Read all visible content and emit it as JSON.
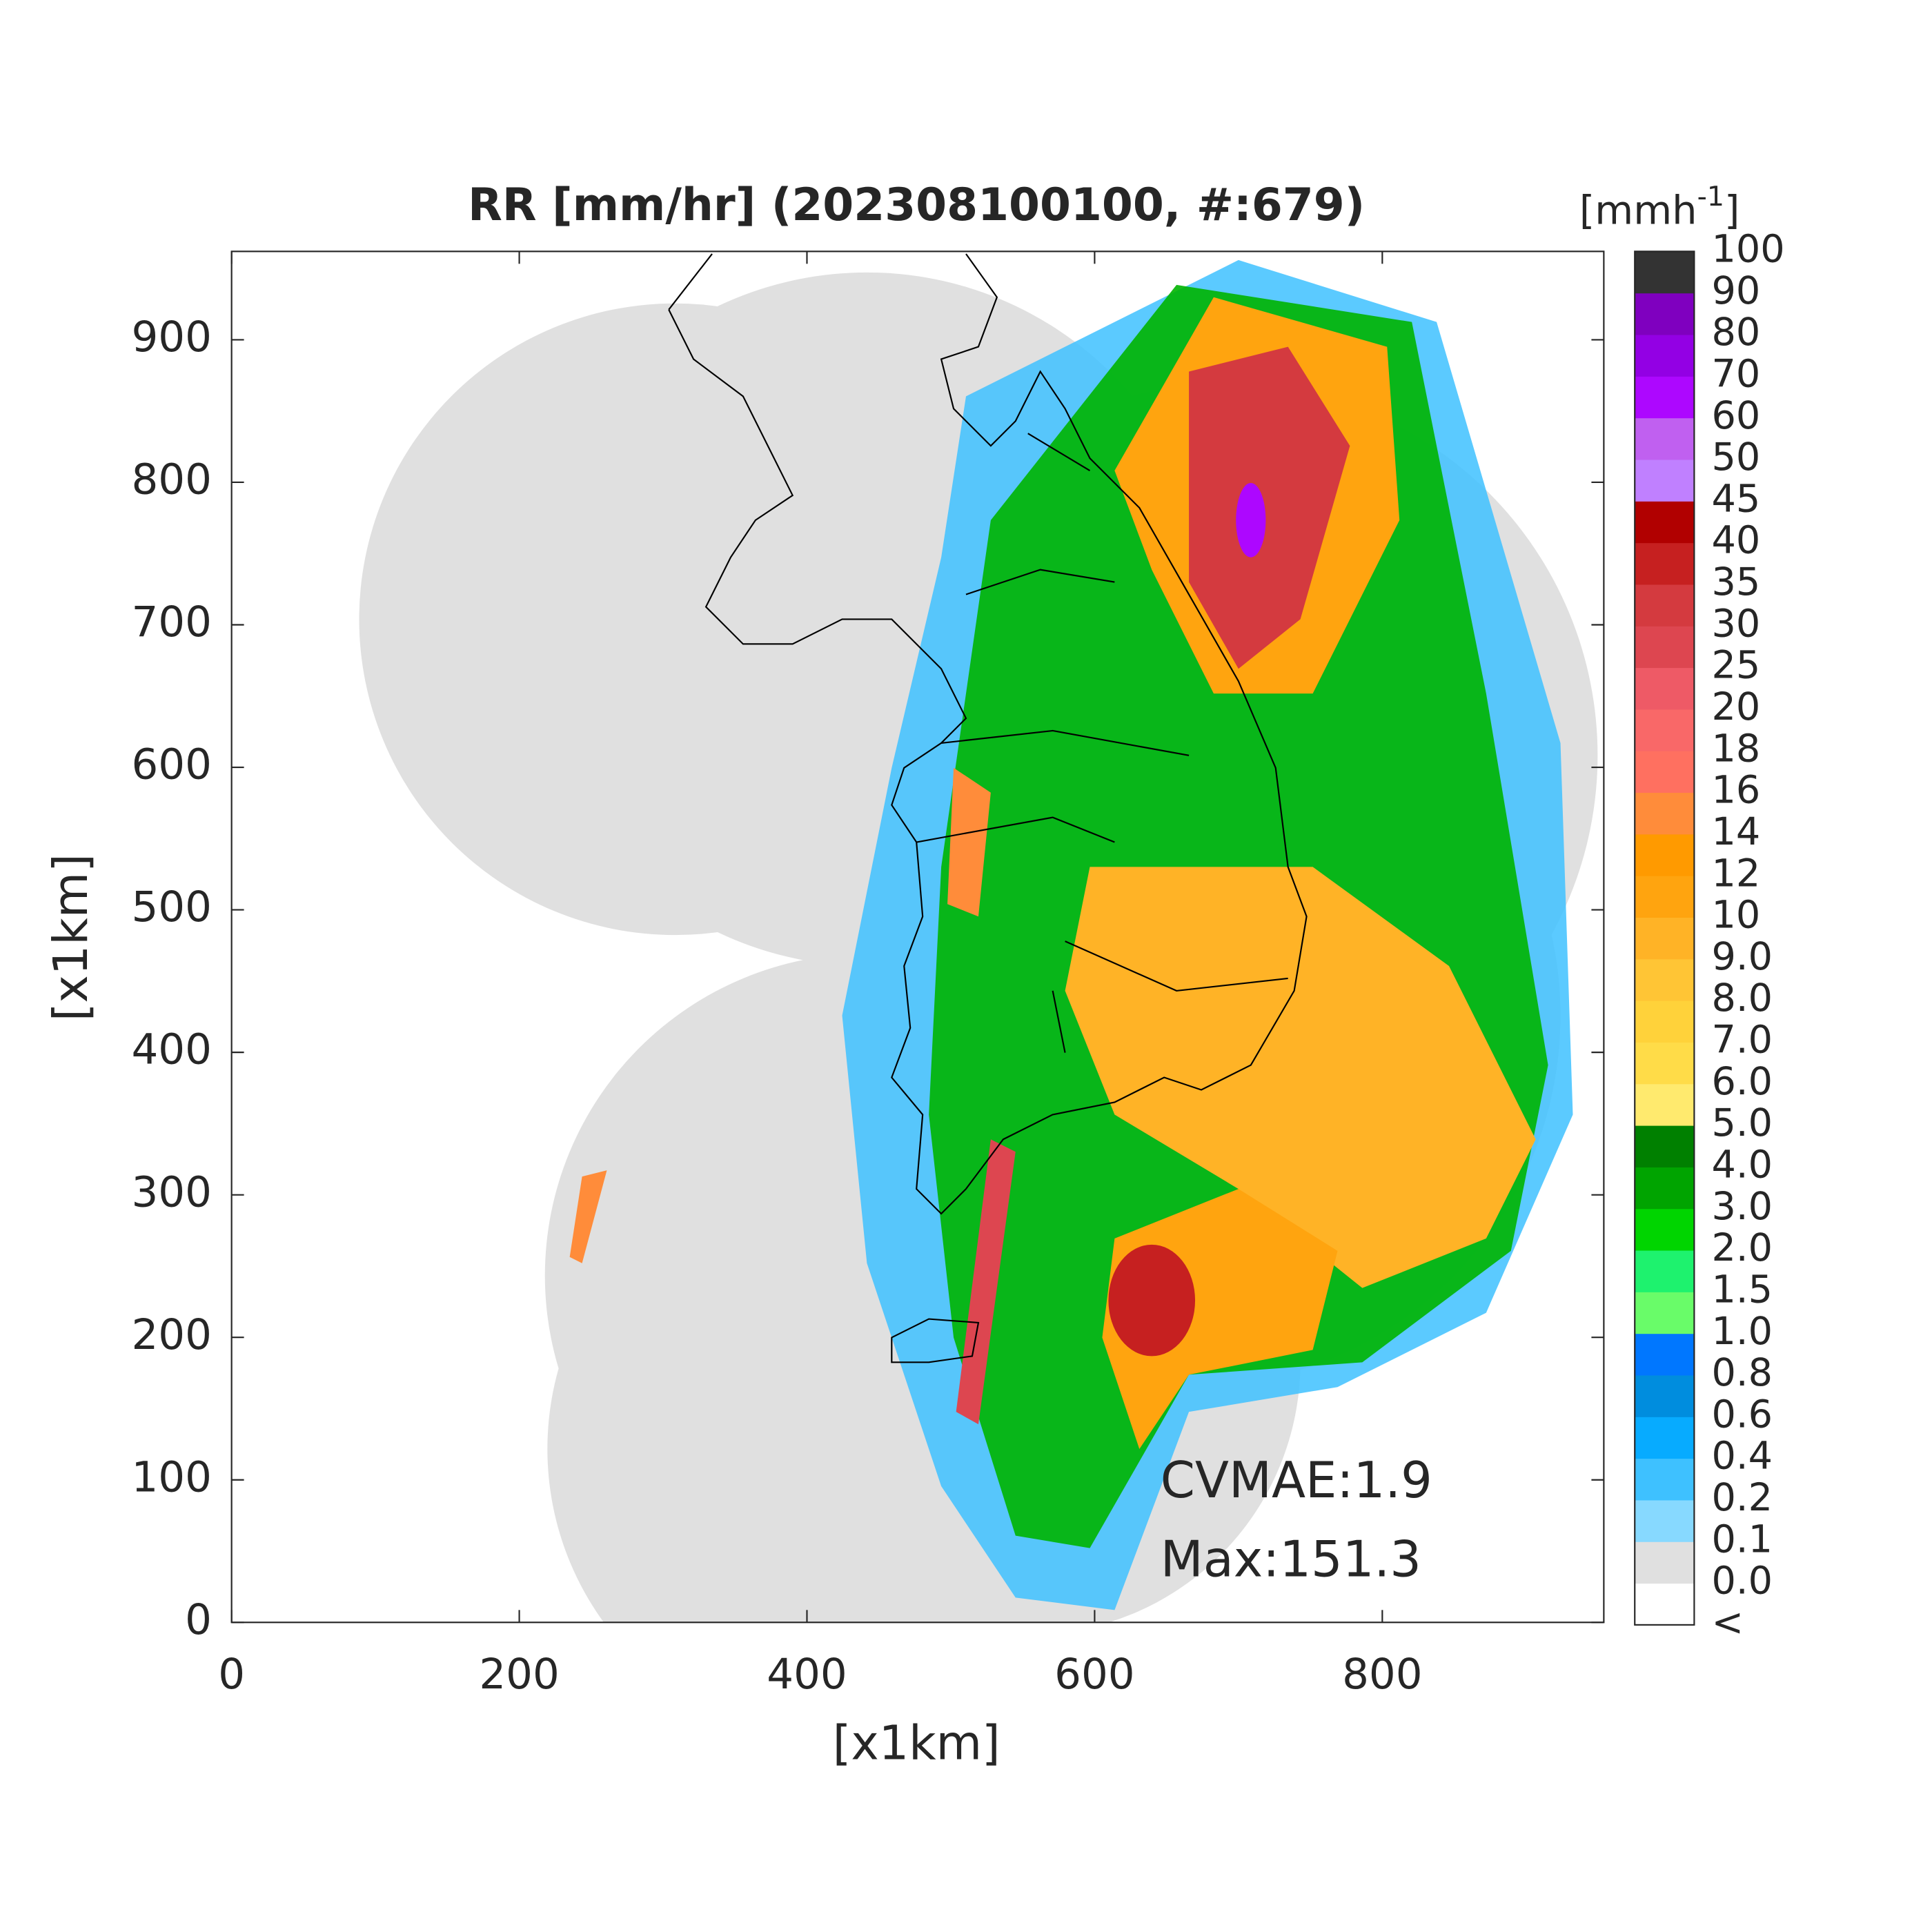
{
  "chart_data": {
    "type": "radar-map",
    "title": "RR [mm/hr] (202308100100, #:679)",
    "x_label": "[x1km]",
    "y_label": "[x1km]",
    "xlim": [
      0,
      954
    ],
    "ylim": [
      0,
      962
    ],
    "xticks": [
      0,
      200,
      400,
      600,
      800
    ],
    "yticks": [
      0,
      100,
      200,
      300,
      400,
      500,
      600,
      700,
      800,
      900
    ],
    "annotations": [
      "CVMAE:1.9",
      "Max:151.3"
    ],
    "colorbar": {
      "units_base": "[mmh",
      "units_exp": "-1",
      "units_close": "]",
      "labels": [
        "<",
        "0.0",
        "0.1",
        "0.2",
        "0.4",
        "0.6",
        "0.8",
        "1.0",
        "1.5",
        "2.0",
        "3.0",
        "4.0",
        "5.0",
        "6.0",
        "7.0",
        "8.0",
        "9.0",
        "10",
        "12",
        "14",
        "16",
        "18",
        "20",
        "25",
        "30",
        "35",
        "40",
        "45",
        "50",
        "60",
        "70",
        "80",
        "90",
        "100"
      ],
      "colors": [
        "#ffffff",
        "#e0e0e0",
        "#87d9ff",
        "#3ec1ff",
        "#07abff",
        "#008dde",
        "#0077ff",
        "#69fc69",
        "#1ef26e",
        "#00d500",
        "#00a400",
        "#008000",
        "#ffea6e",
        "#ffdc48",
        "#ffd23a",
        "#ffc535",
        "#ffb326",
        "#ffa40f",
        "#ff9a00",
        "#ff8c3a",
        "#ff7060",
        "#f96868",
        "#ee5a66",
        "#dd4650",
        "#d43a3f",
        "#c62020",
        "#b10000",
        "#c080ff",
        "#c060f0",
        "#ad07ff",
        "#9300e4",
        "#7f00bf",
        "#333333"
      ]
    }
  }
}
